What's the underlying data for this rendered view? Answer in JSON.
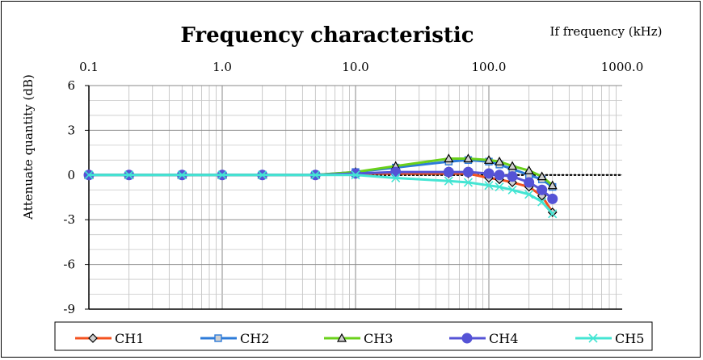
{
  "chart_data": {
    "type": "line",
    "title": "Frequency characteristic",
    "xlabel": "If frequency (kHz)",
    "ylabel": "Attenuate quantity (dB)",
    "x_scale": "log",
    "xlim": [
      0.1,
      1000
    ],
    "ylim": [
      -9,
      6
    ],
    "x_tick_labels": [
      "0.1",
      "1.0",
      "10.0",
      "100.0",
      "1000.0"
    ],
    "y_ticks": [
      6,
      3,
      0,
      -3,
      -6,
      -9
    ],
    "grid": true,
    "legend_position": "bottom",
    "series": [
      {
        "name": "CH1",
        "marker": "diamond",
        "color": "#f4511e",
        "x": [
          0.1,
          0.2,
          0.5,
          1,
          2,
          5,
          10,
          20,
          50,
          70,
          100,
          120,
          150,
          200,
          250,
          300
        ],
        "y": [
          0,
          0,
          0,
          0,
          0,
          0,
          0.1,
          0.1,
          0.1,
          0.1,
          -0.2,
          -0.3,
          -0.5,
          -0.8,
          -1.4,
          -2.5
        ]
      },
      {
        "name": "CH2",
        "marker": "square",
        "color": "#2d7bd9",
        "x": [
          0.1,
          0.2,
          0.5,
          1,
          2,
          5,
          10,
          20,
          50,
          70,
          100,
          120,
          150,
          200,
          250,
          300
        ],
        "y": [
          0,
          0,
          0,
          0,
          0,
          0,
          0.2,
          0.5,
          0.9,
          1.0,
          0.9,
          0.7,
          0.4,
          0.0,
          -0.3,
          -0.8
        ]
      },
      {
        "name": "CH3",
        "marker": "triangle",
        "color": "#6ad11a",
        "x": [
          0.1,
          0.2,
          0.5,
          1,
          2,
          5,
          10,
          20,
          50,
          70,
          100,
          120,
          150,
          200,
          250,
          300
        ],
        "y": [
          0,
          0,
          0,
          0,
          0,
          0,
          0.2,
          0.6,
          1.1,
          1.1,
          1.0,
          0.9,
          0.6,
          0.3,
          -0.1,
          -0.7
        ]
      },
      {
        "name": "CH4",
        "marker": "circle",
        "color": "#5553d6",
        "x": [
          0.1,
          0.2,
          0.5,
          1,
          2,
          5,
          10,
          20,
          50,
          70,
          100,
          120,
          150,
          200,
          250,
          300
        ],
        "y": [
          0,
          0,
          0,
          0,
          0,
          0,
          0.1,
          0.2,
          0.2,
          0.2,
          0.1,
          0.0,
          -0.1,
          -0.5,
          -1.0,
          -1.6
        ]
      },
      {
        "name": "CH5",
        "marker": "x",
        "color": "#44e5d3",
        "x": [
          0.1,
          0.2,
          0.5,
          1,
          2,
          5,
          10,
          20,
          50,
          70,
          100,
          120,
          150,
          200,
          250,
          300
        ],
        "y": [
          0,
          0,
          0,
          0,
          0,
          0,
          0,
          -0.2,
          -0.4,
          -0.5,
          -0.7,
          -0.8,
          -1.0,
          -1.3,
          -1.8,
          -2.6
        ]
      }
    ]
  }
}
